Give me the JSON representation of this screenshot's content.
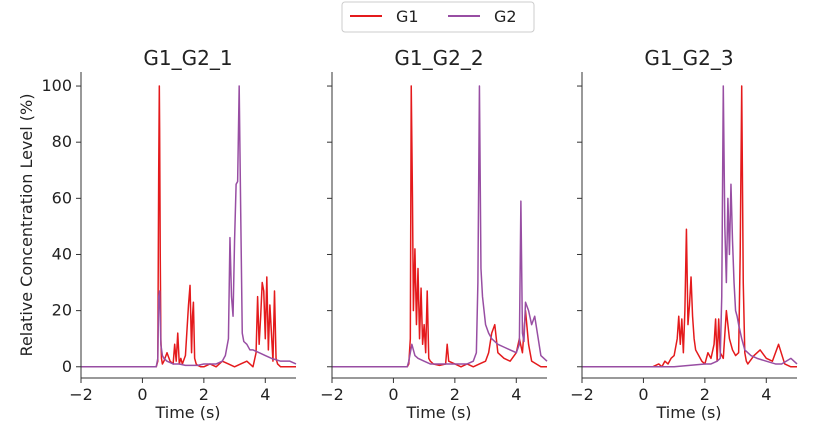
{
  "legend": {
    "items": [
      "G1",
      "G2"
    ]
  },
  "colors": {
    "G1": "#e41a1c",
    "G2": "#984ea3",
    "axis": "#333333"
  },
  "chart_data": [
    {
      "type": "line",
      "title": "G1_G2_1",
      "xlabel": "Time (s)",
      "ylabel": "Relative Concentration Level (%)",
      "xlim": [
        -2,
        5
      ],
      "ylim": [
        -4,
        105
      ],
      "xticks": [
        -2,
        0,
        2,
        4
      ],
      "yticks": [
        0,
        20,
        40,
        60,
        80,
        100
      ],
      "series": [
        {
          "name": "G1",
          "x": [
            -2.0,
            0.0,
            0.3,
            0.45,
            0.5,
            0.53,
            0.55,
            0.56,
            0.58,
            0.6,
            0.62,
            0.65,
            0.7,
            0.8,
            0.9,
            1.0,
            1.05,
            1.1,
            1.15,
            1.2,
            1.25,
            1.3,
            1.4,
            1.5,
            1.55,
            1.6,
            1.63,
            1.66,
            1.7,
            1.75,
            1.8,
            1.9,
            2.0,
            2.2,
            2.4,
            2.6,
            2.8,
            3.0,
            3.2,
            3.4,
            3.6,
            3.7,
            3.75,
            3.8,
            3.85,
            3.9,
            3.95,
            4.0,
            4.05,
            4.1,
            4.15,
            4.2,
            4.25,
            4.3,
            4.35,
            4.4,
            4.5,
            4.6,
            4.8,
            5.0
          ],
          "values": [
            0,
            0,
            0,
            0,
            2,
            70,
            100,
            85,
            40,
            10,
            3,
            1,
            2,
            5,
            2,
            1,
            8,
            2,
            12,
            1,
            3,
            1,
            4,
            22,
            29,
            5,
            18,
            23,
            3,
            1,
            0.5,
            0,
            0,
            1,
            0,
            2,
            1,
            0,
            1,
            2,
            0,
            5,
            25,
            8,
            18,
            30,
            27,
            10,
            32,
            6,
            22,
            12,
            2,
            27,
            3,
            1,
            0,
            0,
            0,
            0
          ]
        },
        {
          "name": "G2",
          "x": [
            -2.0,
            0.0,
            0.3,
            0.45,
            0.5,
            0.53,
            0.56,
            0.58,
            0.6,
            0.65,
            0.7,
            0.8,
            1.0,
            1.2,
            1.4,
            1.6,
            1.8,
            2.0,
            2.2,
            2.4,
            2.6,
            2.7,
            2.8,
            2.85,
            2.9,
            2.95,
            3.0,
            3.05,
            3.1,
            3.15,
            3.2,
            3.25,
            3.3,
            3.4,
            3.5,
            3.6,
            3.8,
            4.0,
            4.2,
            4.5,
            4.8,
            5.0
          ],
          "values": [
            0,
            0,
            0,
            0,
            3,
            25,
            27,
            18,
            8,
            4,
            3,
            2,
            1,
            1,
            0.5,
            0.5,
            0.5,
            1,
            1,
            1,
            2,
            4,
            10,
            46,
            25,
            18,
            45,
            65,
            66,
            100,
            55,
            12,
            9,
            8,
            6,
            6,
            5,
            4,
            3,
            2,
            2,
            1
          ]
        }
      ]
    },
    {
      "type": "line",
      "title": "G1_G2_2",
      "xlabel": "Time (s)",
      "xlim": [
        -2,
        5
      ],
      "ylim": [
        -4,
        105
      ],
      "xticks": [
        -2,
        0,
        2,
        4
      ],
      "series": [
        {
          "name": "G1",
          "x": [
            -2.0,
            0.0,
            0.3,
            0.45,
            0.5,
            0.55,
            0.58,
            0.6,
            0.62,
            0.65,
            0.7,
            0.75,
            0.8,
            0.85,
            0.9,
            0.95,
            1.0,
            1.05,
            1.1,
            1.15,
            1.2,
            1.3,
            1.5,
            1.7,
            1.75,
            1.8,
            2.0,
            2.2,
            2.4,
            2.6,
            2.8,
            3.0,
            3.1,
            3.2,
            3.3,
            3.35,
            3.4,
            3.6,
            3.8,
            4.0,
            4.1,
            4.2,
            4.3,
            4.4,
            4.5,
            4.8,
            5.0
          ],
          "values": [
            0,
            0,
            0,
            0,
            1,
            10,
            100,
            80,
            60,
            20,
            42,
            15,
            35,
            10,
            28,
            8,
            15,
            5,
            27,
            3,
            2,
            1,
            0.5,
            1,
            8,
            2,
            1,
            0,
            1,
            0,
            1,
            2,
            5,
            12,
            15,
            10,
            5,
            3,
            2,
            5,
            10,
            5,
            20,
            8,
            2,
            0,
            0
          ]
        },
        {
          "name": "G2",
          "x": [
            -2.0,
            0.0,
            0.3,
            0.45,
            0.5,
            0.55,
            0.6,
            0.65,
            0.7,
            0.8,
            1.0,
            1.2,
            1.4,
            1.6,
            1.8,
            2.0,
            2.2,
            2.4,
            2.6,
            2.7,
            2.75,
            2.8,
            2.85,
            2.9,
            3.0,
            3.1,
            3.2,
            3.4,
            3.6,
            3.8,
            4.0,
            4.1,
            4.15,
            4.2,
            4.25,
            4.3,
            4.4,
            4.5,
            4.6,
            4.8,
            5.0
          ],
          "values": [
            0,
            0,
            0,
            0,
            2,
            5,
            8,
            6,
            4,
            3,
            2,
            1,
            1,
            1,
            1,
            1,
            1,
            1,
            2,
            5,
            30,
            100,
            35,
            25,
            15,
            12,
            10,
            8,
            7,
            6,
            5,
            8,
            59,
            12,
            9,
            23,
            20,
            15,
            18,
            4,
            2
          ]
        }
      ]
    },
    {
      "type": "line",
      "title": "G1_G2_3",
      "xlabel": "Time (s)",
      "xlim": [
        -2,
        5
      ],
      "ylim": [
        -4,
        105
      ],
      "xticks": [
        -2,
        0,
        2,
        4
      ],
      "series": [
        {
          "name": "G1",
          "x": [
            -2.0,
            0.0,
            0.3,
            0.5,
            0.6,
            0.7,
            0.8,
            0.9,
            1.0,
            1.1,
            1.15,
            1.2,
            1.25,
            1.3,
            1.35,
            1.4,
            1.45,
            1.5,
            1.55,
            1.6,
            1.65,
            1.7,
            1.8,
            1.9,
            2.0,
            2.1,
            2.2,
            2.3,
            2.35,
            2.4,
            2.45,
            2.5,
            2.6,
            2.7,
            2.8,
            2.9,
            3.0,
            3.1,
            3.15,
            3.2,
            3.25,
            3.3,
            3.35,
            3.4,
            3.6,
            3.8,
            4.0,
            4.2,
            4.4,
            4.6,
            4.8,
            5.0
          ],
          "values": [
            0,
            0,
            0,
            1,
            0,
            2,
            1,
            3,
            4,
            10,
            18,
            8,
            17,
            5,
            20,
            49,
            15,
            22,
            32,
            18,
            10,
            6,
            4,
            2,
            1,
            5,
            3,
            8,
            17,
            2,
            17,
            5,
            3,
            20,
            10,
            6,
            4,
            5,
            40,
            100,
            30,
            5,
            2,
            1,
            4,
            6,
            3,
            2,
            8,
            1,
            0,
            0
          ]
        },
        {
          "name": "G2",
          "x": [
            -2.0,
            0.0,
            0.5,
            1.0,
            1.5,
            2.0,
            2.2,
            2.4,
            2.5,
            2.55,
            2.6,
            2.65,
            2.7,
            2.75,
            2.8,
            2.85,
            2.9,
            2.95,
            3.0,
            3.05,
            3.1,
            3.2,
            3.3,
            3.5,
            3.7,
            4.0,
            4.3,
            4.5,
            4.8,
            5.0
          ],
          "values": [
            0,
            0,
            0,
            0,
            0.5,
            1,
            1,
            2,
            3,
            25,
            100,
            50,
            30,
            60,
            40,
            65,
            45,
            30,
            20,
            18,
            15,
            10,
            6,
            4,
            3,
            2,
            1,
            1,
            3,
            1
          ]
        }
      ]
    }
  ]
}
